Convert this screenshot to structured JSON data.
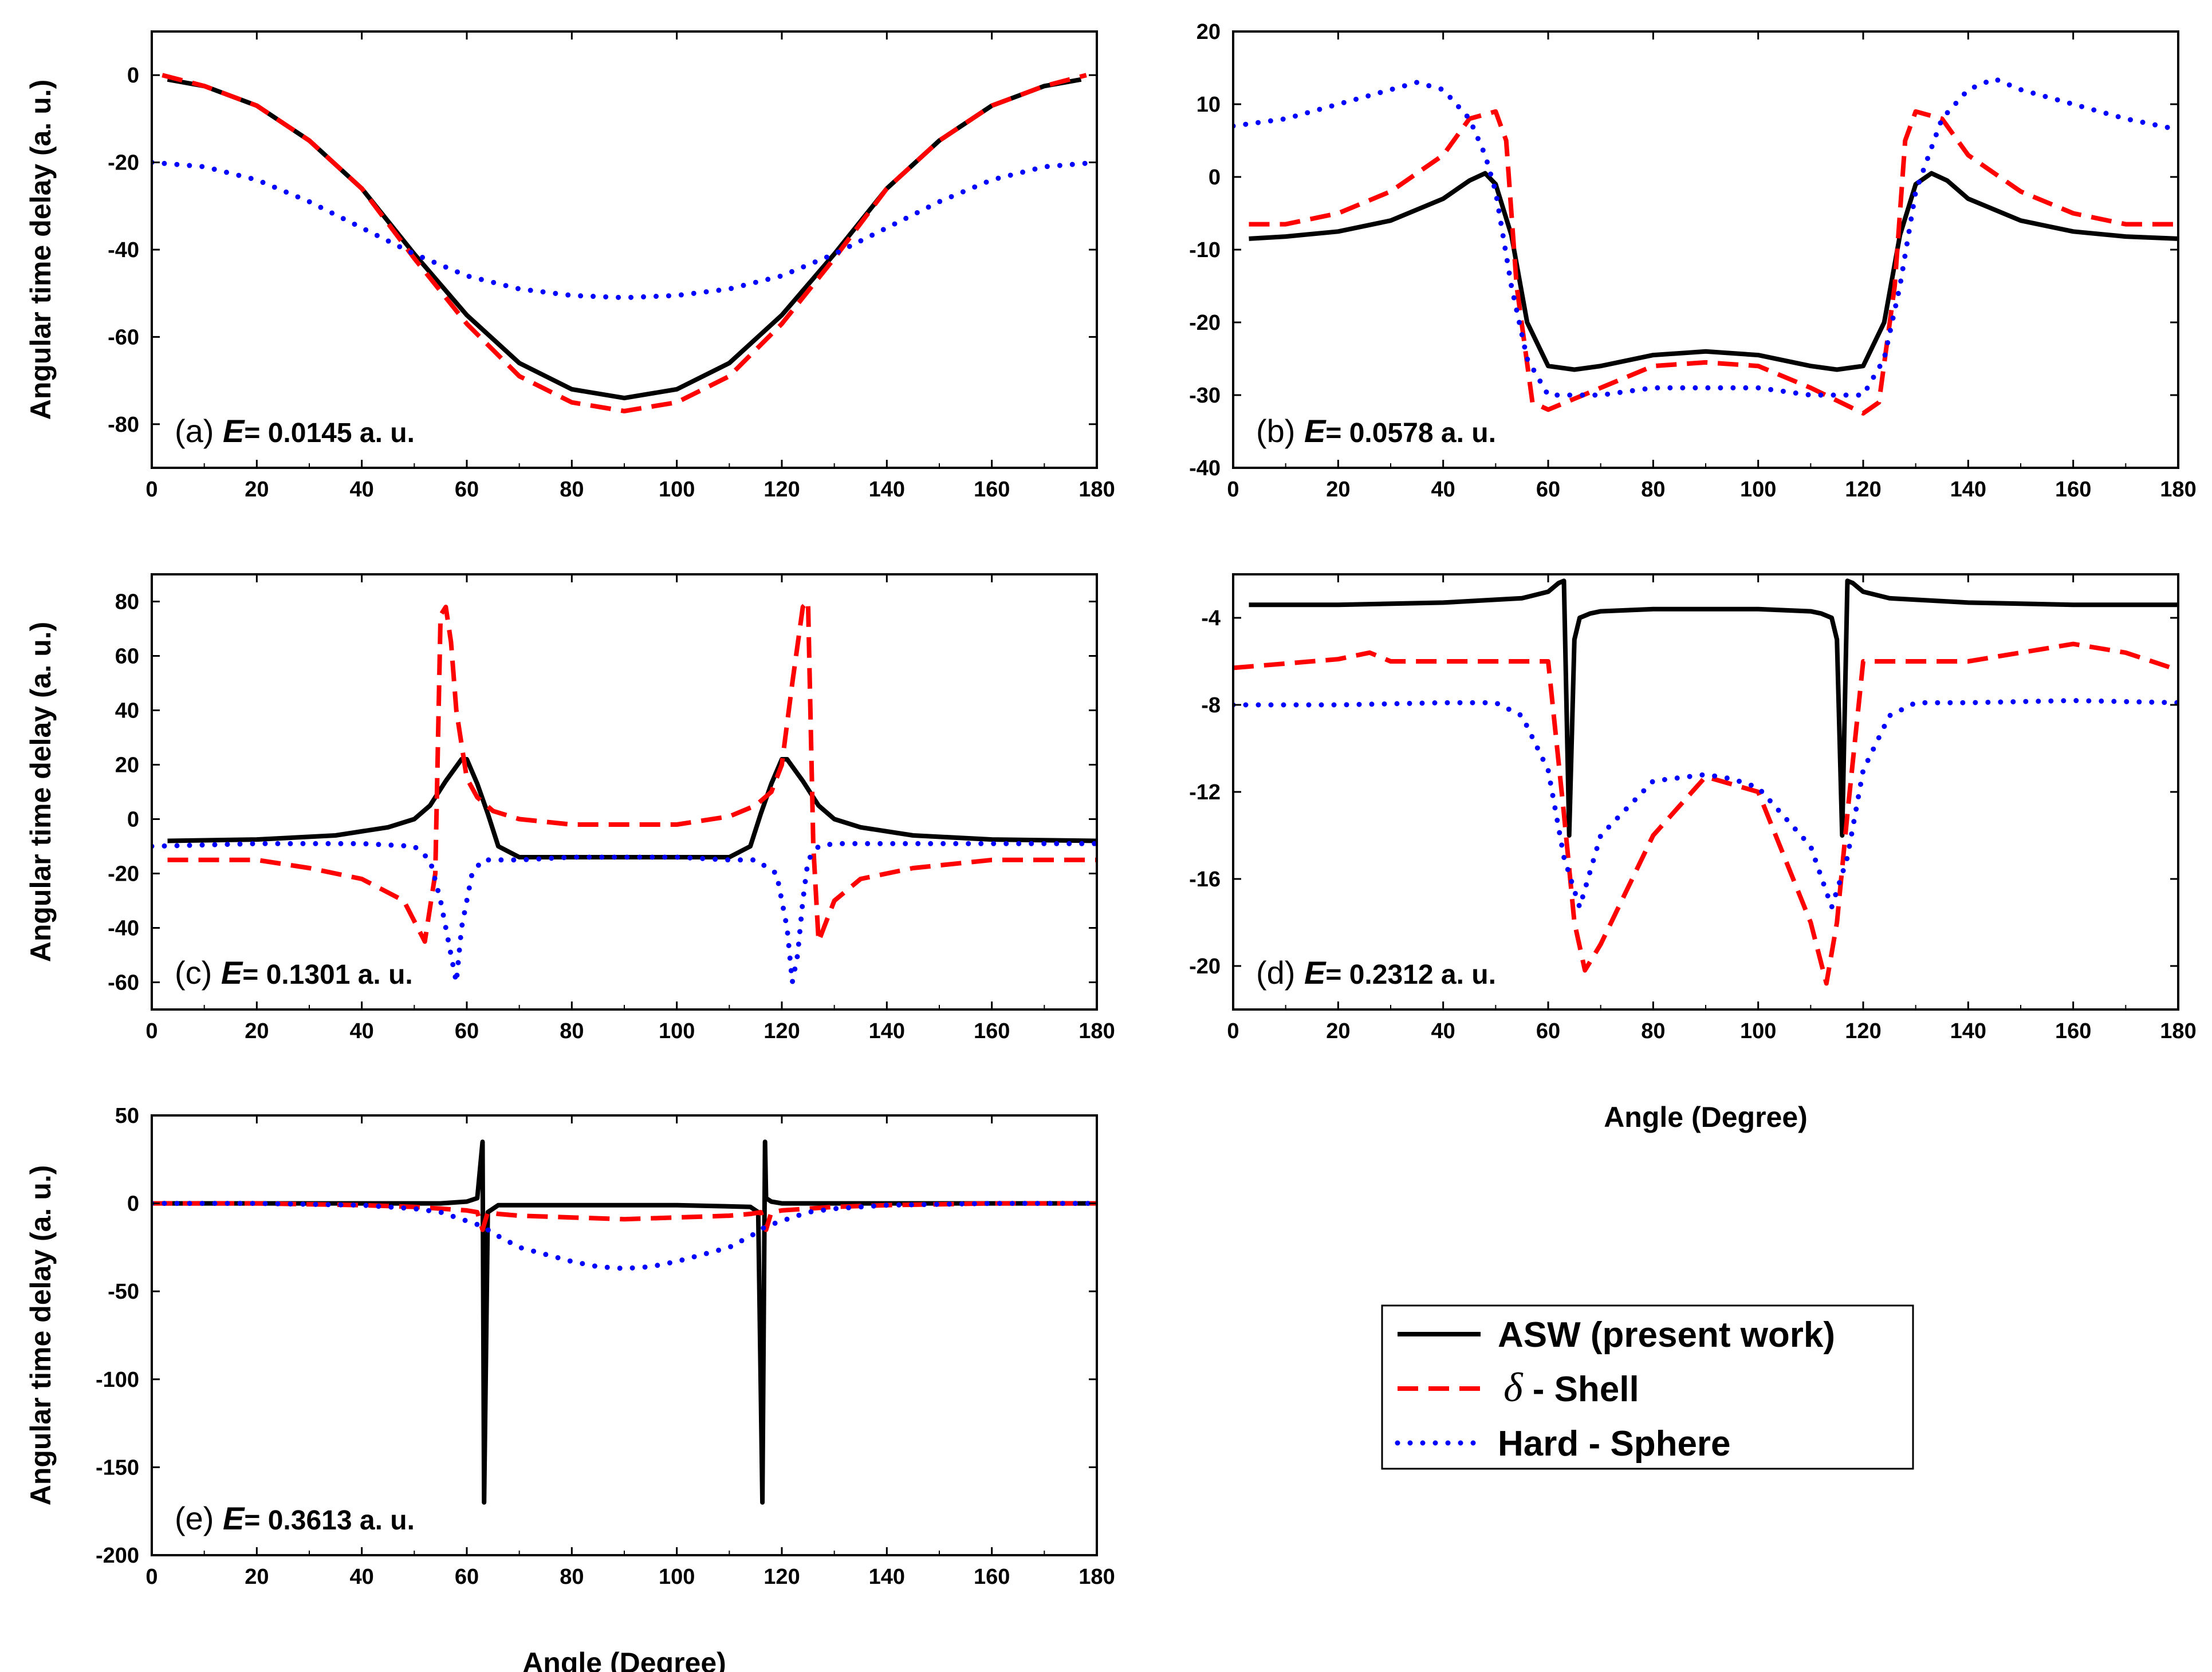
{
  "legend": {
    "entries": [
      {
        "key": "asw",
        "label": "ASW (present work)"
      },
      {
        "key": "delta",
        "symbol": "δ",
        "label": " - Shell"
      },
      {
        "key": "hard",
        "label": "Hard - Sphere"
      }
    ]
  },
  "series_styles": {
    "asw": {
      "color": "#000000"
    },
    "delta": {
      "color": "#ff0000"
    },
    "hard": {
      "color": "#0000ff"
    }
  },
  "chart_data": [
    {
      "id": "a",
      "type": "line",
      "panel_letter": "(a)",
      "energy_symbol": "E",
      "energy_text": "= 0.0145 a. u.",
      "xlabel": "",
      "ylabel": "Angular time delay (a. u.)",
      "xlim": [
        0,
        180
      ],
      "ylim": [
        -90,
        10
      ],
      "xticks": [
        0,
        20,
        40,
        60,
        80,
        100,
        120,
        140,
        160,
        180
      ],
      "yticks": [
        -80,
        -60,
        -40,
        -20,
        0
      ],
      "series": [
        {
          "key": "asw",
          "name": "ASW (present work)",
          "x": [
            3,
            10,
            20,
            30,
            40,
            50,
            60,
            70,
            80,
            90,
            100,
            110,
            120,
            130,
            140,
            150,
            160,
            170,
            177
          ],
          "y": [
            -1,
            -2.5,
            -7,
            -15,
            -26,
            -41,
            -55,
            -66,
            -72,
            -74,
            -72,
            -66,
            -55,
            -41,
            -26,
            -15,
            -7,
            -2.5,
            -1
          ]
        },
        {
          "key": "delta",
          "name": "δ - Shell",
          "x": [
            2,
            10,
            20,
            30,
            40,
            50,
            60,
            70,
            80,
            90,
            100,
            110,
            120,
            130,
            140,
            150,
            160,
            170,
            178
          ],
          "y": [
            0,
            -2.5,
            -7,
            -15,
            -26,
            -42,
            -57,
            -69,
            -75,
            -77,
            -75,
            -69,
            -57,
            -42,
            -26,
            -15,
            -7,
            -2.5,
            0
          ]
        },
        {
          "key": "hard",
          "name": "Hard - Sphere",
          "x": [
            0,
            10,
            20,
            30,
            40,
            50,
            60,
            70,
            80,
            90,
            100,
            110,
            120,
            130,
            140,
            150,
            160,
            170,
            180
          ],
          "y": [
            -20,
            -21,
            -24,
            -29,
            -35,
            -41,
            -46,
            -49,
            -50.5,
            -51,
            -50.5,
            -49,
            -46,
            -41,
            -35,
            -29,
            -24,
            -21,
            -20
          ]
        }
      ]
    },
    {
      "id": "b",
      "type": "line",
      "panel_letter": "(b)",
      "energy_symbol": "E",
      "energy_text": "= 0.0578 a. u.",
      "xlabel": "",
      "ylabel": "",
      "xlim": [
        0,
        180
      ],
      "ylim": [
        -40,
        20
      ],
      "xticks": [
        0,
        20,
        40,
        60,
        80,
        100,
        120,
        140,
        160,
        180
      ],
      "yticks": [
        -40,
        -30,
        -20,
        -10,
        0,
        10,
        20
      ],
      "series": [
        {
          "key": "asw",
          "name": "ASW (present work)",
          "x": [
            3,
            10,
            20,
            30,
            40,
            45,
            48,
            50,
            53,
            56,
            60,
            65,
            70,
            80,
            90,
            100,
            110,
            115,
            120,
            124,
            127,
            130,
            133,
            136,
            140,
            150,
            160,
            170,
            180
          ],
          "y": [
            -8.5,
            -8.2,
            -7.5,
            -6,
            -3,
            -0.5,
            0.5,
            -1,
            -8,
            -20,
            -26,
            -26.5,
            -26,
            -24.5,
            -24,
            -24.5,
            -26,
            -26.5,
            -26,
            -20,
            -8,
            -1,
            0.5,
            -0.5,
            -3,
            -6,
            -7.5,
            -8.2,
            -8.5
          ]
        },
        {
          "key": "delta",
          "name": "δ - Shell",
          "x": [
            3,
            10,
            20,
            30,
            40,
            45,
            50,
            52,
            54,
            57,
            60,
            70,
            80,
            90,
            100,
            110,
            120,
            123,
            126,
            128,
            130,
            135,
            140,
            150,
            160,
            170,
            180
          ],
          "y": [
            -6.5,
            -6.5,
            -5,
            -2,
            3,
            8,
            9,
            5,
            -15,
            -31,
            -32,
            -29,
            -26,
            -25.5,
            -26,
            -29,
            -32.5,
            -31,
            -15,
            5,
            9,
            8,
            3,
            -2,
            -5,
            -6.5,
            -6.5
          ]
        },
        {
          "key": "hard",
          "name": "Hard - Sphere",
          "x": [
            0,
            10,
            20,
            30,
            35,
            40,
            45,
            48,
            50,
            53,
            56,
            60,
            70,
            80,
            90,
            100,
            110,
            120,
            124,
            127,
            130,
            135,
            140,
            145,
            150,
            160,
            170,
            180
          ],
          "y": [
            7,
            8,
            10,
            12,
            13,
            12,
            8,
            3,
            -2,
            -15,
            -25,
            -30,
            -30,
            -29,
            -29,
            -29,
            -30,
            -30,
            -25,
            -15,
            -2,
            8,
            12,
            13.5,
            12,
            10,
            8,
            6.5
          ]
        }
      ]
    },
    {
      "id": "c",
      "type": "line",
      "panel_letter": "(c)",
      "energy_symbol": "E",
      "energy_text": "= 0.1301 a. u.",
      "xlabel": "",
      "ylabel": "Angular time delay (a. u.)",
      "xlim": [
        0,
        180
      ],
      "ylim": [
        -70,
        90
      ],
      "xticks": [
        0,
        20,
        40,
        60,
        80,
        100,
        120,
        140,
        160,
        180
      ],
      "yticks": [
        -60,
        -40,
        -20,
        0,
        20,
        40,
        60,
        80
      ],
      "series": [
        {
          "key": "asw",
          "name": "ASW (present work)",
          "x": [
            3,
            20,
            35,
            45,
            50,
            53,
            56,
            59,
            60,
            62,
            64,
            66,
            70,
            80,
            90,
            100,
            110,
            114,
            116,
            118,
            120,
            121,
            124,
            127,
            130,
            135,
            145,
            160,
            180
          ],
          "y": [
            -8,
            -7.5,
            -6,
            -3,
            0,
            5,
            14,
            22,
            22,
            13,
            2,
            -10,
            -14,
            -14,
            -14,
            -14,
            -14,
            -10,
            2,
            13,
            22,
            22,
            14,
            5,
            0,
            -3,
            -6,
            -7.5,
            -8
          ]
        },
        {
          "key": "delta",
          "name": "δ - Shell",
          "x": [
            3,
            20,
            30,
            40,
            48,
            52,
            54,
            55,
            56,
            57,
            58,
            60,
            62,
            65,
            70,
            80,
            90,
            100,
            110,
            115,
            118,
            120,
            122,
            124,
            125,
            126,
            127,
            128,
            130,
            135,
            145,
            160,
            180
          ],
          "y": [
            -15,
            -15,
            -18,
            -22,
            -30,
            -45,
            -20,
            75,
            78,
            65,
            40,
            15,
            8,
            3,
            0,
            -2,
            -2,
            -2,
            1,
            5,
            10,
            20,
            50,
            78,
            80,
            -10,
            -45,
            -40,
            -30,
            -22,
            -18,
            -15,
            -15
          ]
        },
        {
          "key": "hard",
          "name": "Hard - Sphere",
          "x": [
            0,
            20,
            40,
            50,
            53,
            55,
            57,
            58,
            59,
            61,
            63,
            70,
            80,
            90,
            100,
            110,
            115,
            119,
            121,
            122,
            123,
            124,
            125,
            127,
            130,
            140,
            160,
            180
          ],
          "y": [
            -10,
            -9,
            -9,
            -10,
            -15,
            -30,
            -50,
            -60,
            -40,
            -20,
            -15,
            -15,
            -14,
            -14,
            -14,
            -15,
            -15,
            -20,
            -40,
            -60,
            -50,
            -30,
            -15,
            -10,
            -9,
            -9,
            -9,
            -9
          ]
        }
      ]
    },
    {
      "id": "d",
      "type": "line",
      "panel_letter": "(d)",
      "energy_symbol": "E",
      "energy_text": "= 0.2312 a. u.",
      "xlabel": "Angle (Degree)",
      "ylabel": "",
      "xlim": [
        0,
        180
      ],
      "ylim": [
        -22,
        -2
      ],
      "xticks": [
        0,
        20,
        40,
        60,
        80,
        100,
        120,
        140,
        160,
        180
      ],
      "yticks": [
        -20,
        -16,
        -12,
        -8,
        -4
      ],
      "series": [
        {
          "key": "asw",
          "name": "ASW (present work)",
          "x": [
            3,
            20,
            40,
            55,
            60,
            62,
            63,
            64,
            65,
            66,
            68,
            70,
            80,
            90,
            100,
            110,
            112,
            114,
            115,
            116,
            117,
            118,
            120,
            125,
            140,
            160,
            180
          ],
          "y": [
            -3.4,
            -3.4,
            -3.3,
            -3.1,
            -2.8,
            -2.4,
            -2.3,
            -14,
            -5,
            -4,
            -3.8,
            -3.7,
            -3.6,
            -3.6,
            -3.6,
            -3.7,
            -3.8,
            -4,
            -5,
            -14,
            -2.3,
            -2.4,
            -2.8,
            -3.1,
            -3.3,
            -3.4,
            -3.4
          ]
        },
        {
          "key": "delta",
          "name": "δ - Shell",
          "x": [
            0,
            10,
            20,
            26,
            30,
            40,
            50,
            60,
            63,
            65,
            67,
            70,
            80,
            90,
            100,
            110,
            113,
            115,
            117,
            120,
            130,
            140,
            150,
            160,
            170,
            180
          ],
          "y": [
            -6.3,
            -6.1,
            -5.9,
            -5.6,
            -6,
            -6,
            -6,
            -6,
            -13,
            -18,
            -20.2,
            -19,
            -14,
            -11.3,
            -12,
            -18,
            -20.8,
            -18,
            -13,
            -6,
            -6,
            -6,
            -5.6,
            -5.2,
            -5.6,
            -6.4
          ]
        },
        {
          "key": "hard",
          "name": "Hard - Sphere",
          "x": [
            0,
            20,
            40,
            50,
            55,
            60,
            63,
            66,
            70,
            80,
            90,
            95,
            100,
            110,
            114,
            117,
            120,
            125,
            130,
            140,
            160,
            180
          ],
          "y": [
            -8,
            -8,
            -7.9,
            -7.9,
            -8.5,
            -11,
            -15,
            -17.3,
            -14,
            -11.5,
            -11.2,
            -11.4,
            -11.8,
            -14.5,
            -17.3,
            -15,
            -11,
            -8.5,
            -7.9,
            -7.9,
            -7.8,
            -7.9
          ]
        }
      ]
    },
    {
      "id": "e",
      "type": "line",
      "panel_letter": "(e)",
      "energy_symbol": "E",
      "energy_text": "= 0.3613 a. u.",
      "xlabel": "Angle (Degree)",
      "ylabel": "Angular time delay (a. u.)",
      "xlim": [
        0,
        180
      ],
      "ylim": [
        -200,
        50
      ],
      "xticks": [
        0,
        20,
        40,
        60,
        80,
        100,
        120,
        140,
        160,
        180
      ],
      "yticks": [
        -200,
        -150,
        -100,
        -50,
        0,
        50
      ],
      "series": [
        {
          "key": "asw",
          "name": "ASW (present work)",
          "x": [
            2,
            30,
            55,
            60,
            62,
            63,
            63.3,
            64,
            66,
            80,
            90,
            100,
            114,
            115.5,
            116.3,
            116.8,
            117,
            118,
            120,
            125,
            150,
            178
          ],
          "y": [
            0,
            0,
            0,
            1,
            3,
            35,
            -170,
            -5,
            -1,
            -1,
            -1,
            -1,
            -2,
            -5,
            -170,
            35,
            3,
            1,
            0,
            0,
            0,
            0
          ]
        },
        {
          "key": "delta",
          "name": "δ - Shell",
          "x": [
            0,
            20,
            40,
            50,
            55,
            60,
            62,
            63,
            64,
            66,
            70,
            80,
            90,
            100,
            110,
            114,
            116,
            117,
            118,
            120,
            125,
            130,
            140,
            160,
            180
          ],
          "y": [
            0,
            0,
            -1,
            -2,
            -3,
            -4,
            -5,
            -15,
            -5,
            -6,
            -7,
            -8,
            -9,
            -8,
            -7,
            -6,
            -5,
            -15,
            -5,
            -4,
            -3,
            -2,
            -1,
            0,
            0
          ]
        },
        {
          "key": "hard",
          "name": "Hard - Sphere",
          "x": [
            0,
            20,
            40,
            50,
            55,
            60,
            63,
            65,
            70,
            80,
            85,
            90,
            95,
            100,
            110,
            115,
            117,
            120,
            125,
            130,
            140,
            160,
            180
          ],
          "y": [
            0,
            0,
            -1,
            -3,
            -5,
            -10,
            -13,
            -17,
            -25,
            -33,
            -36,
            -37,
            -36,
            -33,
            -25,
            -17,
            -13,
            -10,
            -5,
            -3,
            -1,
            0,
            0
          ]
        }
      ]
    }
  ]
}
